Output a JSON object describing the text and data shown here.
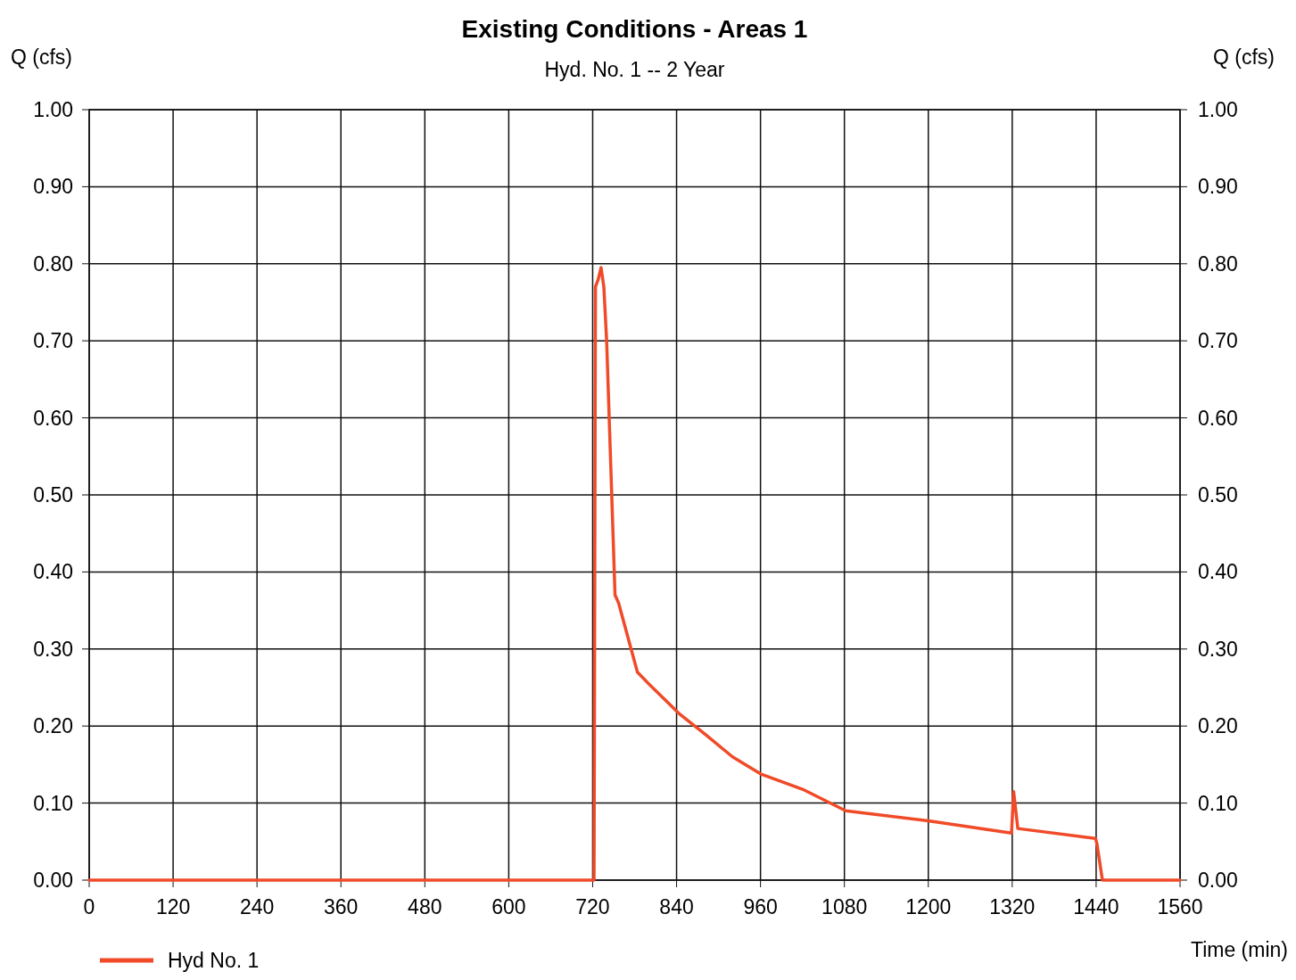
{
  "chart_data": {
    "type": "line",
    "title": "Existing Conditions - Areas 1",
    "subtitle": "Hyd. No. 1 -- 2 Year",
    "xlabel": "Time (min)",
    "ylabel": "Q (cfs)",
    "y2label": "Q (cfs)",
    "xlim": [
      0,
      1560
    ],
    "xticks": [
      0,
      120,
      240,
      360,
      480,
      600,
      720,
      840,
      960,
      1080,
      1200,
      1320,
      1440,
      1560
    ],
    "ylim": [
      0,
      1
    ],
    "yticks": [
      {
        "value": 0,
        "label": "0.00"
      },
      {
        "value": 0.1,
        "label": "0.10"
      },
      {
        "value": 0.2,
        "label": "0.20"
      },
      {
        "value": 0.3,
        "label": "0.30"
      },
      {
        "value": 0.4,
        "label": "0.40"
      },
      {
        "value": 0.5,
        "label": "0.50"
      },
      {
        "value": 0.6,
        "label": "0.60"
      },
      {
        "value": 0.7,
        "label": "0.70"
      },
      {
        "value": 0.8,
        "label": "0.80"
      },
      {
        "value": 0.9,
        "label": "0.90"
      },
      {
        "value": 1,
        "label": "1.00"
      }
    ],
    "y2lim": [
      0,
      1
    ],
    "y2ticks": [
      {
        "value": 0,
        "label": "0.00"
      },
      {
        "value": 0.1,
        "label": "0.10"
      },
      {
        "value": 0.2,
        "label": "0.20"
      },
      {
        "value": 0.3,
        "label": "0.30"
      },
      {
        "value": 0.4,
        "label": "0.40"
      },
      {
        "value": 0.5,
        "label": "0.50"
      },
      {
        "value": 0.6,
        "label": "0.60"
      },
      {
        "value": 0.7,
        "label": "0.70"
      },
      {
        "value": 0.8,
        "label": "0.80"
      },
      {
        "value": 0.9,
        "label": "0.90"
      },
      {
        "value": 1,
        "label": "1.00"
      }
    ],
    "grid": true,
    "legend": "bottom left",
    "marker": "none",
    "line_style": "solid",
    "series": [
      {
        "name": "Hyd No. 1",
        "color": "#f04a28",
        "x": [
          0,
          722,
          724,
          728,
          732,
          736,
          740,
          752,
          757,
          784,
          800,
          845,
          880,
          920,
          960,
          1020,
          1082,
          1200,
          1319,
          1322,
          1328,
          1439,
          1441,
          1449,
          1560
        ],
        "values": [
          0,
          0,
          0.77,
          0.78,
          0.795,
          0.77,
          0.7,
          0.37,
          0.36,
          0.27,
          0.255,
          0.215,
          0.19,
          0.16,
          0.138,
          0.118,
          0.09,
          0.077,
          0.061,
          0.115,
          0.067,
          0.054,
          0.048,
          0,
          0
        ]
      }
    ]
  }
}
